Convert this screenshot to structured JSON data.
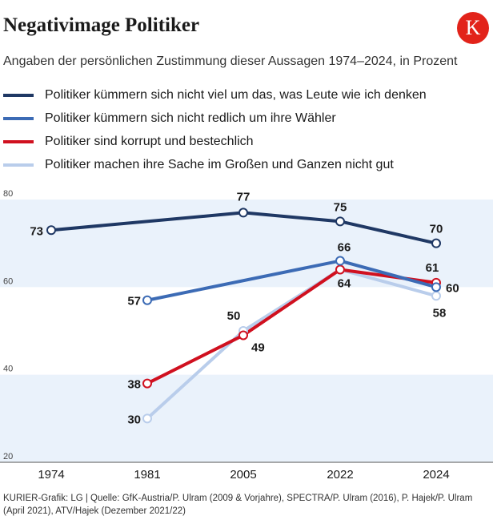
{
  "title": "Negativimage Politiker",
  "subtitle": "Angaben der persönlichen Zustimmung dieser Aussagen 1974–2024, in Prozent",
  "logo_letter": "K",
  "source": "KURIER-Grafik: LG | Quelle: GfK-Austria/P. Ulram (2009 & Vorjahre), SPECTRA/P. Ulram (2016), P. Hajek/P. Ulram (April 2021), ATV/Hajek (Dezember 2021/22)",
  "colors": {
    "band": "#eaf2fb",
    "axis": "#555555",
    "logo": "#e2231a"
  },
  "chart_data": {
    "type": "line",
    "title": "Negativimage Politiker",
    "xlabel": "",
    "ylabel": "",
    "x": [
      1974,
      1981,
      2005,
      2022,
      2024
    ],
    "xticks": [
      "1974",
      "1981",
      "2005",
      "2022",
      "2024"
    ],
    "ylim": [
      20,
      80
    ],
    "yticks": [
      20,
      40,
      60,
      80
    ],
    "series": [
      {
        "name": "Politiker kümmern sich nicht viel um das, was Leute wie ich denken",
        "color": "#1f3864",
        "values": [
          73,
          null,
          77,
          75,
          70
        ],
        "labels": [
          "73",
          null,
          "77",
          "75",
          "70"
        ]
      },
      {
        "name": "Politiker kümmern sich nicht redlich um ihre Wähler",
        "color": "#3c6bb5",
        "values": [
          null,
          57,
          null,
          66,
          60
        ],
        "labels": [
          null,
          "57",
          null,
          "66",
          "60"
        ]
      },
      {
        "name": "Politiker sind korrupt und bestechlich",
        "color": "#d0101f",
        "values": [
          null,
          38,
          49,
          64,
          61
        ],
        "labels": [
          null,
          "38",
          "49",
          "64",
          "61"
        ]
      },
      {
        "name": "Politiker machen ihre Sache im Großen und Ganzen nicht gut",
        "color": "#b9cdeb",
        "values": [
          null,
          30,
          50,
          64,
          58
        ],
        "labels": [
          null,
          "30",
          "50",
          null,
          "58"
        ]
      }
    ]
  }
}
